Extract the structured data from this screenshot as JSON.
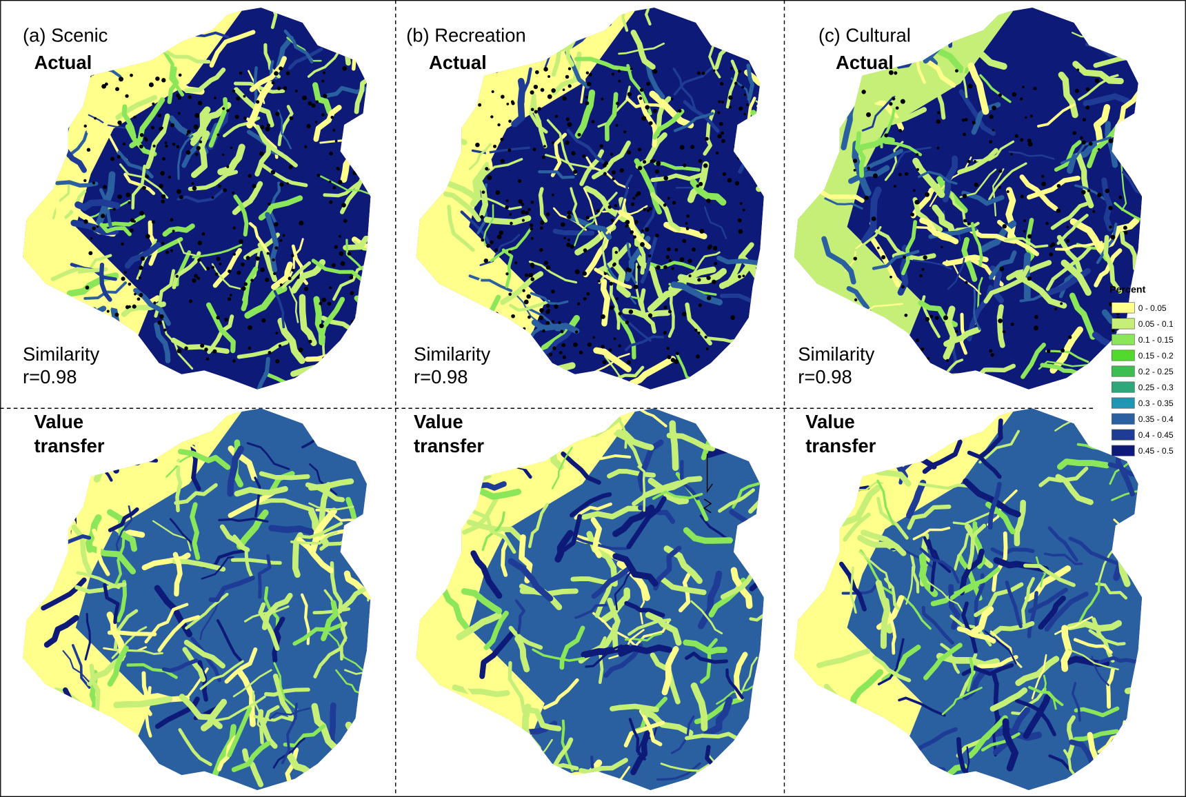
{
  "panels": [
    {
      "label": "(a) Scenic",
      "actual": "Actual",
      "similarity": "Similarity",
      "r": "r=0.98",
      "value_transfer": [
        "Value",
        "transfer"
      ]
    },
    {
      "label": "(b) Recreation",
      "actual": "Actual",
      "similarity": "Similarity",
      "r": "r=0.98",
      "value_transfer": [
        "Value",
        "transfer"
      ]
    },
    {
      "label": "(c) Cultural",
      "actual": "Actual",
      "similarity": "Similarity",
      "r": "r=0.98",
      "value_transfer": [
        "Value",
        "transfer"
      ]
    }
  ],
  "legend": {
    "title": "Percent",
    "items": [
      {
        "label": "0 - 0.05",
        "color": "#ffff8c"
      },
      {
        "label": "0.05 - 0.1",
        "color": "#c6ef78"
      },
      {
        "label": "0.1 - 0.15",
        "color": "#8ce65a"
      },
      {
        "label": "0.15 - 0.2",
        "color": "#52d92e"
      },
      {
        "label": "0.2 - 0.25",
        "color": "#3cbf50"
      },
      {
        "label": "0.25 - 0.3",
        "color": "#2ea87a"
      },
      {
        "label": "0.3 - 0.35",
        "color": "#1e96b4"
      },
      {
        "label": "0.35 - 0.4",
        "color": "#2a5fa0"
      },
      {
        "label": "0.4 - 0.45",
        "color": "#1e3c96"
      },
      {
        "label": "0.45 - 0.5",
        "color": "#0e1a78"
      }
    ]
  }
}
